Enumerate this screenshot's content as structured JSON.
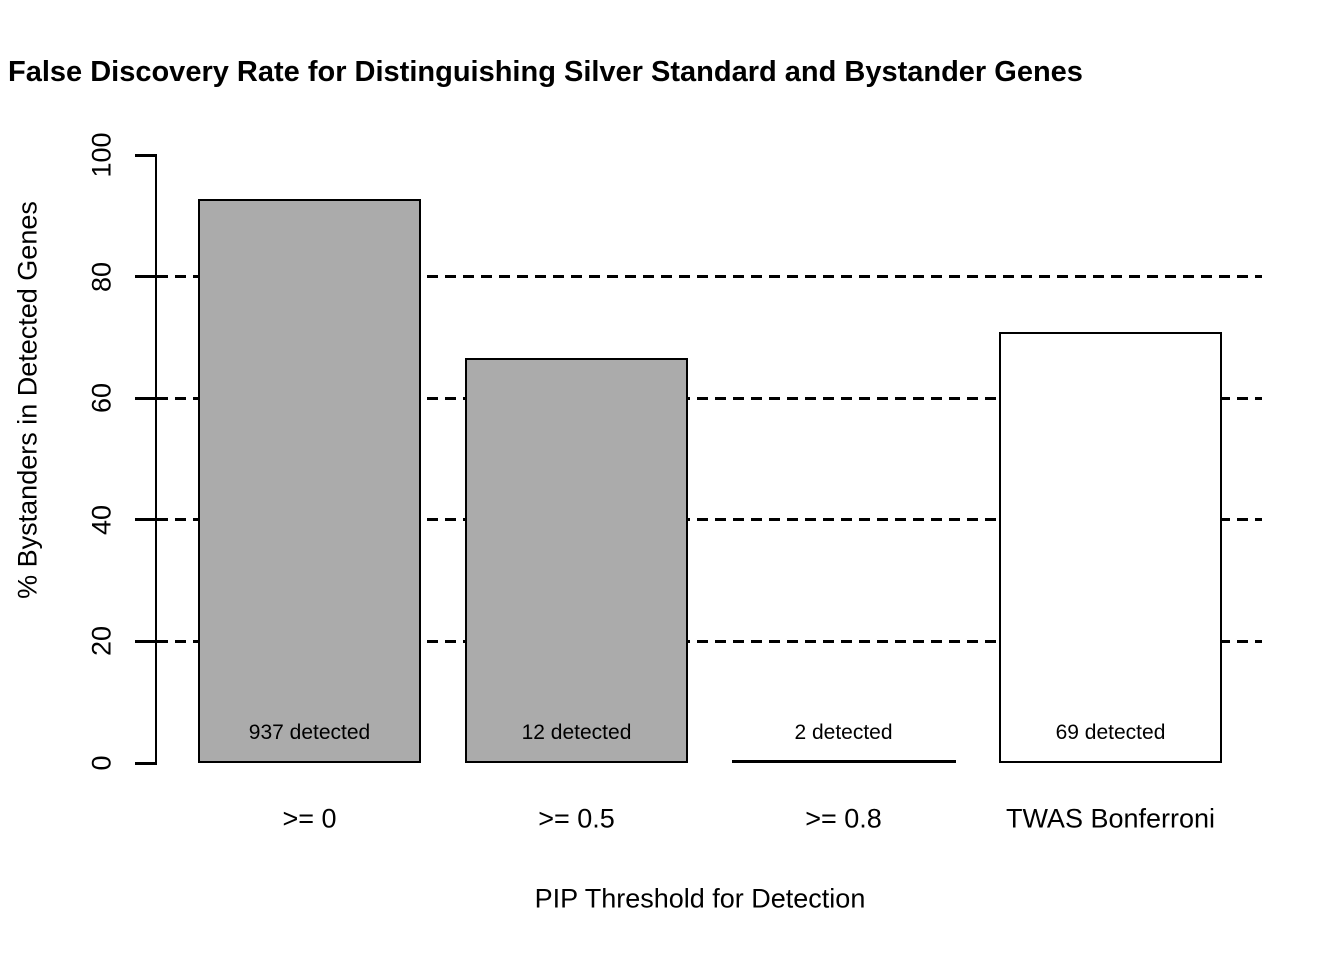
{
  "figure": {
    "background": "#FFFFFF",
    "text_color": "#000000"
  },
  "chart_data": {
    "type": "bar",
    "title": "False Discovery Rate for Distinguishing Silver Standard and Bystander Genes",
    "xlabel": "PIP Threshold for Detection",
    "ylabel": "% Bystanders in Detected Genes",
    "ylim": [
      0,
      100
    ],
    "yticks": [
      0,
      20,
      40,
      60,
      80,
      100
    ],
    "gridlines_at": [
      20,
      40,
      60,
      80
    ],
    "grid_style": "dashed",
    "legend_position": "none",
    "categories": [
      ">= 0",
      ">= 0.5",
      ">= 0.8",
      "TWAS Bonferroni"
    ],
    "values": [
      92.8,
      66.6,
      0,
      70.9
    ],
    "bar_labels": [
      "937 detected",
      "12 detected",
      "2 detected",
      "69 detected"
    ],
    "bar_fill_colors": [
      "#ABABAB",
      "#ABABAB",
      "#ABABAB",
      "#FFFFFF"
    ],
    "bar_border_color": "#000000",
    "axis_color": "#000000",
    "gridline_color": "#000000"
  }
}
